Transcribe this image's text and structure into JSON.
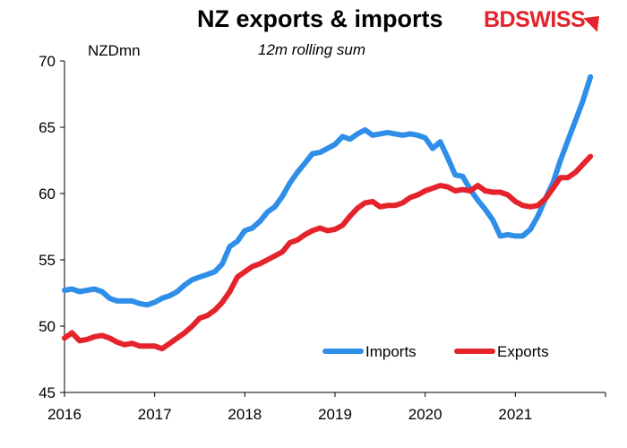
{
  "header": {
    "title": "NZ exports & imports",
    "subtitle": "12m rolling sum",
    "unit": "NZDmn",
    "logo_text": "BDSWISS"
  },
  "colors": {
    "imports": "#2f8ee8",
    "exports": "#e4232b",
    "axis": "#000000",
    "brand": "#e4232b"
  },
  "chart_data": {
    "type": "line",
    "title": "NZ exports & imports",
    "subtitle": "12m rolling sum",
    "ylabel": "NZDmn",
    "xlim": [
      2016,
      2022
    ],
    "ylim": [
      45,
      70
    ],
    "x_ticks": [
      "2016",
      "2017",
      "2018",
      "2019",
      "2020",
      "2021"
    ],
    "y_ticks": [
      "45",
      "50",
      "55",
      "60",
      "65",
      "70"
    ],
    "grid": false,
    "legend_position": "bottom-right",
    "x": [
      2016.0,
      2016.083,
      2016.167,
      2016.25,
      2016.333,
      2016.417,
      2016.5,
      2016.583,
      2016.667,
      2016.75,
      2016.833,
      2016.917,
      2017.0,
      2017.083,
      2017.167,
      2017.25,
      2017.333,
      2017.417,
      2017.5,
      2017.583,
      2017.667,
      2017.75,
      2017.833,
      2017.917,
      2018.0,
      2018.083,
      2018.167,
      2018.25,
      2018.333,
      2018.417,
      2018.5,
      2018.583,
      2018.667,
      2018.75,
      2018.833,
      2018.917,
      2019.0,
      2019.083,
      2019.167,
      2019.25,
      2019.333,
      2019.417,
      2019.5,
      2019.583,
      2019.667,
      2019.75,
      2019.833,
      2019.917,
      2020.0,
      2020.083,
      2020.167,
      2020.25,
      2020.333,
      2020.417,
      2020.5,
      2020.583,
      2020.667,
      2020.75,
      2020.833,
      2020.917,
      2021.0,
      2021.083,
      2021.167,
      2021.25,
      2021.333,
      2021.417,
      2021.5,
      2021.583,
      2021.667,
      2021.75,
      2021.833
    ],
    "series": [
      {
        "name": "Imports",
        "values": [
          52.7,
          52.8,
          52.6,
          52.7,
          52.8,
          52.6,
          52.1,
          51.9,
          51.9,
          51.9,
          51.7,
          51.6,
          51.8,
          52.1,
          52.3,
          52.6,
          53.1,
          53.5,
          53.7,
          53.9,
          54.1,
          54.7,
          56.0,
          56.4,
          57.2,
          57.4,
          57.9,
          58.6,
          59.0,
          59.8,
          60.8,
          61.6,
          62.3,
          63.0,
          63.1,
          63.4,
          63.7,
          64.3,
          64.1,
          64.5,
          64.8,
          64.4,
          64.5,
          64.6,
          64.5,
          64.4,
          64.5,
          64.4,
          64.2,
          63.4,
          63.9,
          62.7,
          61.4,
          61.3,
          60.3,
          59.5,
          58.8,
          58.0,
          56.8,
          56.9,
          56.8,
          56.8,
          57.3,
          58.3,
          59.6,
          60.8,
          62.5,
          64.0,
          65.5,
          67.0,
          68.8
        ]
      },
      {
        "name": "Exports",
        "values": [
          49.1,
          49.5,
          48.9,
          49.0,
          49.2,
          49.3,
          49.1,
          48.8,
          48.6,
          48.7,
          48.5,
          48.5,
          48.5,
          48.3,
          48.7,
          49.1,
          49.5,
          50.0,
          50.6,
          50.8,
          51.2,
          51.8,
          52.6,
          53.7,
          54.1,
          54.5,
          54.7,
          55.0,
          55.3,
          55.6,
          56.3,
          56.5,
          56.9,
          57.2,
          57.4,
          57.2,
          57.3,
          57.6,
          58.3,
          58.9,
          59.3,
          59.4,
          59.0,
          59.1,
          59.1,
          59.3,
          59.7,
          59.9,
          60.2,
          60.4,
          60.6,
          60.5,
          60.2,
          60.3,
          60.2,
          60.6,
          60.2,
          60.1,
          60.1,
          59.9,
          59.4,
          59.1,
          59.0,
          59.1,
          59.6,
          60.4,
          61.2,
          61.2,
          61.6,
          62.2,
          62.8
        ]
      }
    ]
  }
}
